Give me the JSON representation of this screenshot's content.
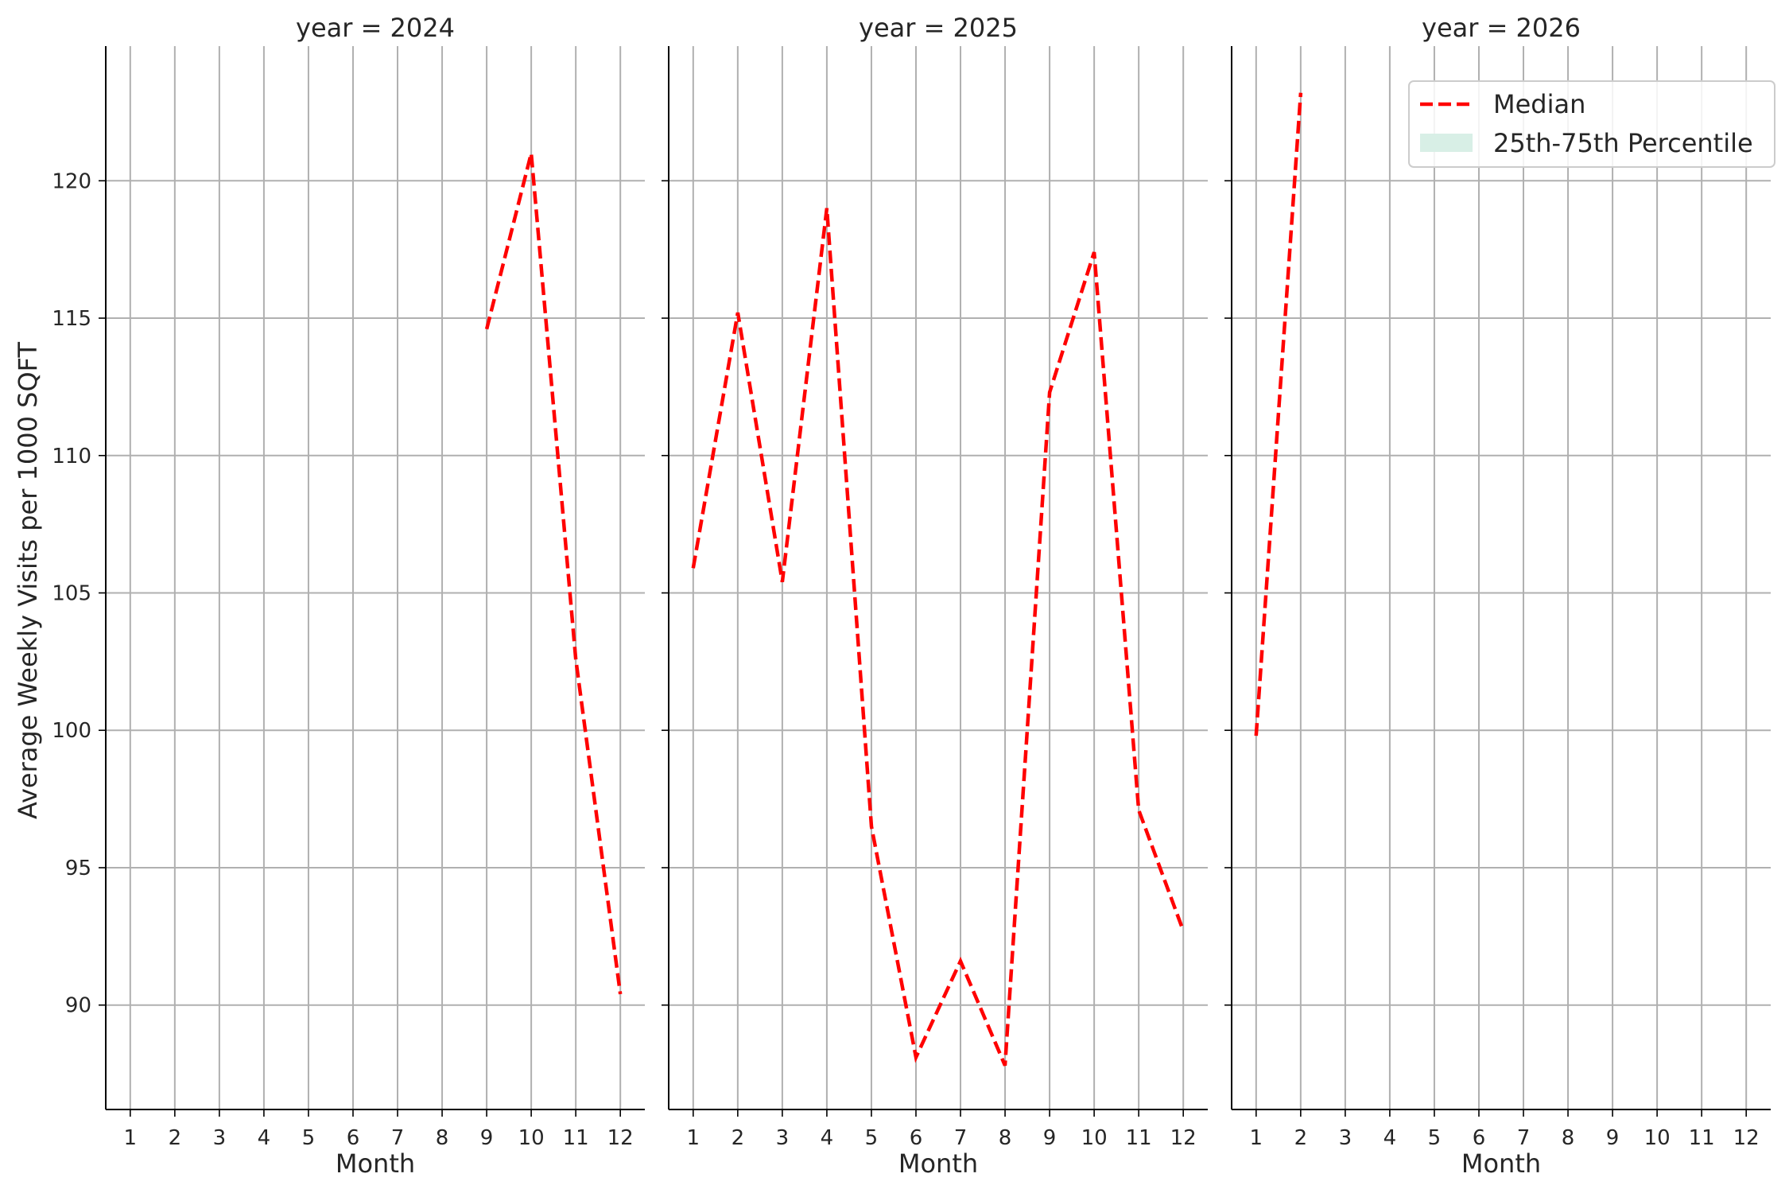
{
  "chart_data": {
    "type": "line",
    "facet_by": "year",
    "ylabel": "Average Weekly Visits per 1000 SQFT",
    "xlabel": "Month",
    "x_ticks": [
      1,
      2,
      3,
      4,
      5,
      6,
      7,
      8,
      9,
      10,
      11,
      12
    ],
    "y_ticks": [
      90,
      95,
      100,
      105,
      110,
      115,
      120
    ],
    "xlim": [
      0.45,
      12.55
    ],
    "ylim": [
      86.2,
      124.9
    ],
    "grid": true,
    "legend": {
      "placement": "top-right",
      "entries": [
        {
          "label": "Median",
          "style": "dashed-line",
          "color": "#ff0000"
        },
        {
          "label": "25th-75th Percentile",
          "style": "band",
          "color": "#d8efe6"
        }
      ]
    },
    "panels": [
      {
        "title": "year = 2024",
        "series": [
          {
            "name": "Median",
            "x": [
              9,
              10,
              11,
              12
            ],
            "y": [
              114.6,
              121.0,
              102.6,
              90.4
            ]
          }
        ]
      },
      {
        "title": "year = 2025",
        "series": [
          {
            "name": "Median",
            "x": [
              1,
              2,
              3,
              4,
              5,
              6,
              7,
              8,
              9,
              10,
              11,
              12
            ],
            "y": [
              105.9,
              115.2,
              105.4,
              119.0,
              96.5,
              88.1,
              91.6,
              87.8,
              112.3,
              117.4,
              97.1,
              92.7
            ]
          }
        ]
      },
      {
        "title": "year = 2026",
        "series": [
          {
            "name": "Median",
            "x": [
              1,
              2
            ],
            "y": [
              99.8,
              123.2
            ]
          }
        ]
      }
    ],
    "colors": {
      "median": "#ff0000",
      "band": "#d8efe6",
      "grid": "#b0b0b0",
      "axis": "#000000"
    }
  }
}
